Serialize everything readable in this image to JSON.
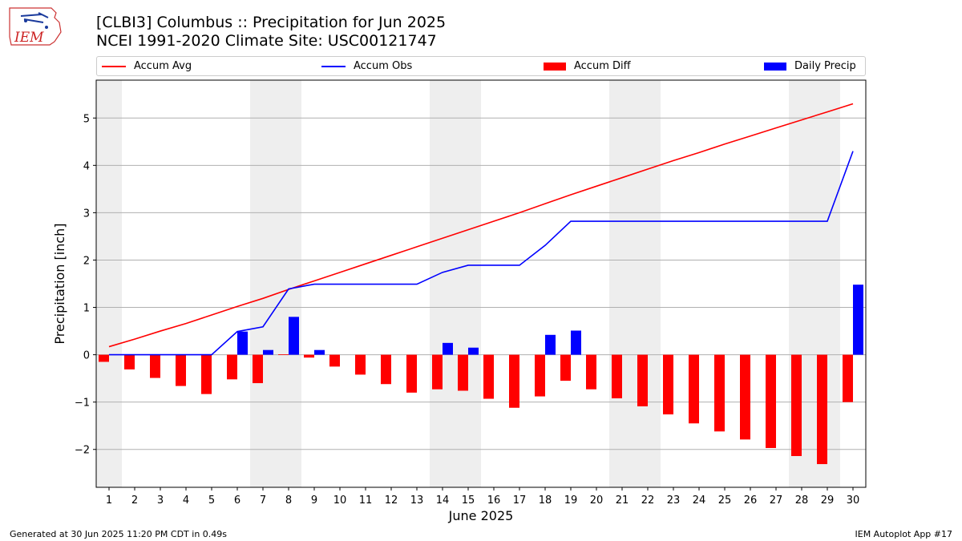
{
  "header": {
    "title": "[CLBI3] Columbus :: Precipitation for Jun 2025",
    "subtitle": "NCEI 1991-2020 Climate Site: USC00121747",
    "logo_text": "IEM"
  },
  "legend": [
    {
      "label": "Accum Avg",
      "kind": "line",
      "color": "#ff0000"
    },
    {
      "label": "Accum Obs",
      "kind": "line",
      "color": "#0000ff"
    },
    {
      "label": "Accum Diff",
      "kind": "box",
      "color": "#ff0000"
    },
    {
      "label": "Daily Precip",
      "kind": "box",
      "color": "#0000ff"
    }
  ],
  "footer": {
    "left": "Generated at 30 Jun 2025 11:20 PM CDT in 0.49s",
    "right": "IEM Autoplot App #17"
  },
  "chart_data": {
    "type": "bar",
    "xlabel": "June 2025",
    "ylabel": "Precipitation [inch]",
    "ylim": [
      -2.8,
      5.8
    ],
    "yticks": [
      -2,
      -1,
      0,
      1,
      2,
      3,
      4,
      5
    ],
    "grid": true,
    "legend_position": "top",
    "shaded_days": [
      [
        1,
        1
      ],
      [
        7,
        8
      ],
      [
        14,
        15
      ],
      [
        21,
        22
      ],
      [
        28,
        29
      ]
    ],
    "days": [
      1,
      2,
      3,
      4,
      5,
      6,
      7,
      8,
      9,
      10,
      11,
      12,
      13,
      14,
      15,
      16,
      17,
      18,
      19,
      20,
      21,
      22,
      23,
      24,
      25,
      26,
      27,
      28,
      29,
      30
    ],
    "series": [
      {
        "name": "Accum Avg",
        "type": "line",
        "color": "#ff0000",
        "values": [
          0.17,
          0.33,
          0.5,
          0.66,
          0.84,
          1.02,
          1.19,
          1.38,
          1.56,
          1.74,
          1.92,
          2.1,
          2.28,
          2.46,
          2.64,
          2.82,
          3.0,
          3.19,
          3.38,
          3.56,
          3.74,
          3.92,
          4.1,
          4.27,
          4.45,
          4.62,
          4.79,
          4.96,
          5.13,
          5.3
        ]
      },
      {
        "name": "Accum Obs",
        "type": "line",
        "color": "#0000ff",
        "values": [
          0,
          0,
          0,
          0,
          0,
          0.49,
          0.59,
          1.39,
          1.49,
          1.49,
          1.49,
          1.49,
          1.49,
          1.74,
          1.89,
          1.89,
          1.89,
          2.31,
          2.82,
          2.82,
          2.82,
          2.82,
          2.82,
          2.82,
          2.82,
          2.82,
          2.82,
          2.82,
          2.82,
          4.3
        ]
      },
      {
        "name": "Accum Diff",
        "type": "bar",
        "color": "#ff0000",
        "values": [
          -0.15,
          -0.31,
          -0.49,
          -0.66,
          -0.83,
          -0.52,
          -0.6,
          0.01,
          -0.06,
          -0.25,
          -0.42,
          -0.62,
          -0.8,
          -0.73,
          -0.76,
          -0.93,
          -1.12,
          -0.88,
          -0.55,
          -0.73,
          -0.92,
          -1.09,
          -1.26,
          -1.45,
          -1.62,
          -1.79,
          -1.97,
          -2.14,
          -2.31,
          -1.0
        ]
      },
      {
        "name": "Daily Precip",
        "type": "bar",
        "color": "#0000ff",
        "values": [
          0,
          0,
          0,
          0,
          0,
          0.49,
          0.1,
          0.8,
          0.1,
          0,
          0,
          0,
          0,
          0.25,
          0.15,
          0,
          0,
          0.42,
          0.51,
          0,
          0,
          0,
          0,
          0,
          0,
          0,
          0,
          0,
          0,
          1.48
        ]
      }
    ]
  }
}
